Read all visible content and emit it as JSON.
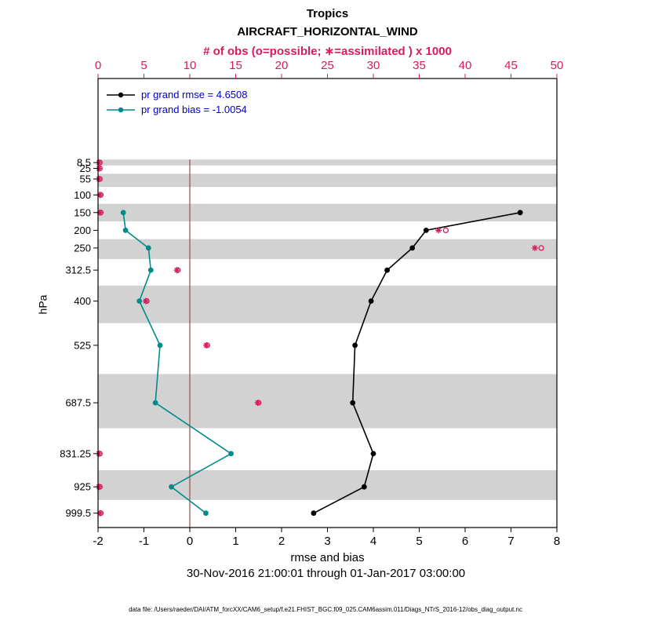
{
  "header": {
    "region": "Tropics",
    "variable": "AIRCRAFT_HORIZONTAL_WIND"
  },
  "axes": {
    "top_label": "# of obs (o=possible; ∗=assimilated ) x 1000",
    "xlabel": "rmse and bias",
    "ylabel": "hPa",
    "timespan": "30-Nov-2016 21:00:01 through 01-Jan-2017 03:00:00"
  },
  "legend": {
    "rmse_label": "pr grand rmse = 4.6508",
    "bias_label": "pr grand bias = -1.0054"
  },
  "footer": {
    "datafile": "data file: /Users/raeder/DAI/ATM_forcXX/CAM6_setup/f.e21.FHIST_BGC.f09_025.CAM6assim.011/Diags_NTrS_2016-12/obs_diag_output.nc"
  },
  "colors": {
    "obs": "#d81b60",
    "rmse": "#000000",
    "bias": "#008b8b",
    "band": "#d2d2d2",
    "zero_line": "#9e4b4b",
    "legend_text": "#0000cc",
    "axis": "#000000"
  },
  "chart_data": {
    "type": "line",
    "title": "Tropics AIRCRAFT_HORIZONTAL_WIND",
    "xlabel": "rmse and bias",
    "ylabel": "hPa",
    "top_axis_label": "# of obs (o=possible; ∗=assimilated ) x 1000",
    "levels_hpa": [
      8.5,
      25,
      55,
      100,
      150,
      200,
      250,
      312.5,
      400,
      525,
      687.5,
      831.25,
      925,
      999.5
    ],
    "series": [
      {
        "name": "pr grand rmse = 4.6508",
        "color": "#000000",
        "values": [
          null,
          null,
          null,
          null,
          7.2,
          5.15,
          4.85,
          4.3,
          3.95,
          3.6,
          3.55,
          4.0,
          3.8,
          2.7
        ]
      },
      {
        "name": "pr grand bias = -1.0054",
        "color": "#008b8b",
        "values": [
          null,
          null,
          null,
          null,
          -1.45,
          -1.4,
          -0.9,
          -0.85,
          -1.1,
          -0.65,
          -0.75,
          0.9,
          -0.4,
          0.35
        ]
      }
    ],
    "obs_counts_thousands": {
      "possible": [
        0.2,
        0.2,
        0.2,
        0.3,
        0.3,
        37.9,
        48.3,
        8.7,
        5.3,
        11.9,
        17.5,
        0.2,
        0.2,
        0.3
      ],
      "assimilated": [
        0.1,
        0.1,
        0.1,
        0.2,
        0.2,
        37.1,
        47.6,
        8.6,
        5.2,
        11.8,
        17.4,
        0.1,
        0.1,
        0.2
      ]
    },
    "xlim": [
      -2,
      8
    ],
    "x_ticks": [
      -2,
      -1,
      0,
      1,
      2,
      3,
      4,
      5,
      6,
      7,
      8
    ],
    "top_xlim": [
      0,
      50
    ],
    "top_ticks": [
      0,
      5,
      10,
      15,
      20,
      25,
      30,
      35,
      40,
      45,
      50
    ],
    "ylim_hpa": [
      -229,
      1040
    ],
    "bin_edges_hpa": [
      0,
      16.75,
      40,
      77.5,
      125,
      175,
      225,
      281.25,
      356.25,
      462.5,
      606.25,
      759.375,
      878.125,
      962.25,
      1036.75
    ],
    "shaded_bins": [
      0,
      2,
      4,
      6,
      8,
      10,
      12
    ],
    "zero_line_x": 0,
    "grid": false,
    "legend_position": "top-left"
  }
}
